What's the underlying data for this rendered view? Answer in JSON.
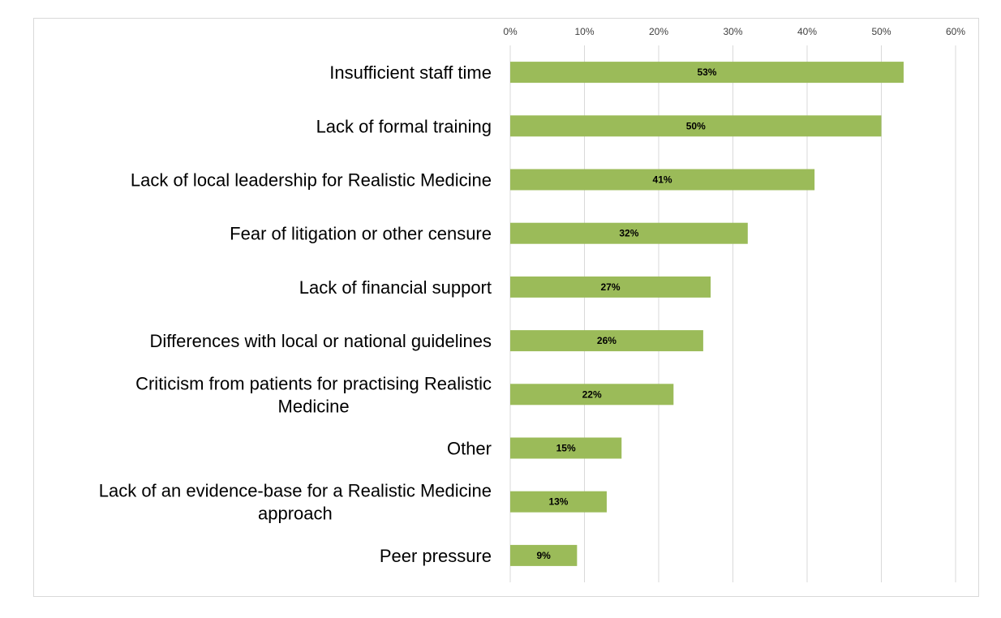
{
  "chart_data": {
    "type": "bar",
    "orientation": "horizontal",
    "title": "",
    "xlabel": "",
    "ylabel": "",
    "categories": [
      "Insufficient staff time",
      "Lack of formal training",
      "Lack of local leadership for Realistic Medicine",
      "Fear of litigation or other censure",
      "Lack of financial support",
      "Differences with local or national guidelines",
      "Criticism from patients for practising Realistic Medicine",
      "Other",
      "Lack of an evidence-base for a Realistic Medicine approach",
      "Peer pressure"
    ],
    "category_lines": [
      [
        "Insufficient staff time"
      ],
      [
        "Lack of formal training"
      ],
      [
        "Lack of local leadership for Realistic Medicine"
      ],
      [
        "Fear of litigation or other censure"
      ],
      [
        "Lack of financial support"
      ],
      [
        "Differences with local or national guidelines"
      ],
      [
        "Criticism from patients for practising Realistic",
        "Medicine"
      ],
      [
        "Other"
      ],
      [
        "Lack of an evidence-base for a Realistic Medicine",
        "approach"
      ],
      [
        "Peer pressure"
      ]
    ],
    "values": [
      53,
      50,
      41,
      32,
      27,
      26,
      22,
      15,
      13,
      9
    ],
    "data_labels": [
      "53%",
      "50%",
      "41%",
      "32%",
      "27%",
      "26%",
      "22%",
      "15%",
      "13%",
      "9%"
    ],
    "xlim": [
      0,
      60
    ],
    "x_ticks": [
      0,
      10,
      20,
      30,
      40,
      50,
      60
    ],
    "x_tick_labels": [
      "0%",
      "10%",
      "20%",
      "30%",
      "40%",
      "50%",
      "60%"
    ],
    "x_axis_position": "top",
    "grid": true,
    "legend": "none",
    "bar_color": "#9bbb59",
    "grid_color": "#d9d9d9"
  }
}
